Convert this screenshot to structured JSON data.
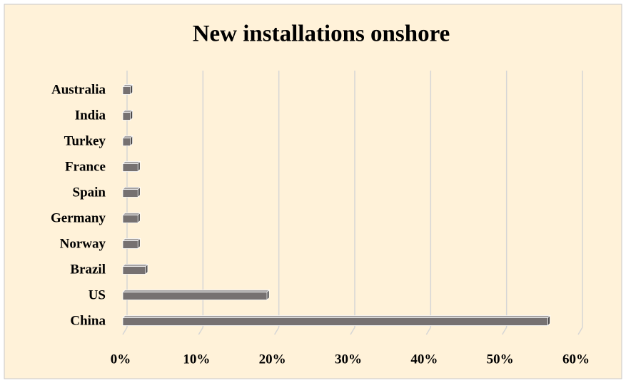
{
  "chart_data": {
    "type": "bar3d_horizontal",
    "title": "New installations onshore",
    "categories": [
      "China",
      "US",
      "Brazil",
      "Norway",
      "Germany",
      "Spain",
      "France",
      "Turkey",
      "India",
      "Australia"
    ],
    "values": [
      56,
      19,
      3,
      2,
      2,
      2,
      2,
      1,
      1,
      1
    ],
    "color": "#767171",
    "xlim": [
      0,
      60
    ],
    "xticks": [
      {
        "value": 0,
        "label": "0%"
      },
      {
        "value": 10,
        "label": "10%"
      },
      {
        "value": 20,
        "label": "20%"
      },
      {
        "value": 30,
        "label": "30%"
      },
      {
        "value": 40,
        "label": "40%"
      },
      {
        "value": 50,
        "label": "50%"
      },
      {
        "value": 60,
        "label": "60%"
      }
    ],
    "grid": true
  }
}
